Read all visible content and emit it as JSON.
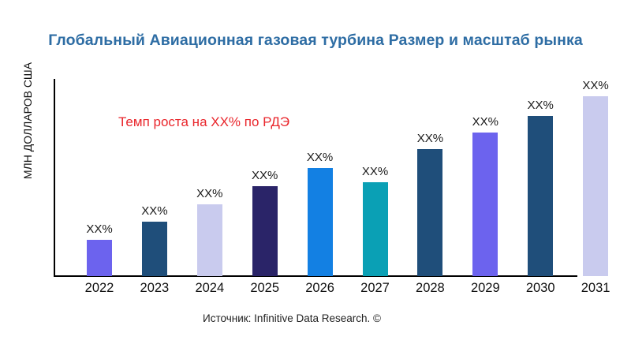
{
  "title": "Глобальный Авиационная газовая турбина Размер и масштаб рынка",
  "ylabel": "МЛН ДОЛЛАРОВ США",
  "annotation": {
    "text": "Темп роста на XX% по РДЭ",
    "color": "#e9262c"
  },
  "source": "Источник: Infinitive Data Research. ©",
  "colors": {
    "title": "#2e6da4",
    "axis": "#000000",
    "bar_label": "#1a1a1a"
  },
  "chart_data": {
    "type": "bar",
    "title": "Глобальный Авиационная газовая турбина Размер и масштаб рынка",
    "xlabel": "",
    "ylabel": "МЛН ДОЛЛАРОВ США",
    "categories": [
      "2022",
      "2023",
      "2024",
      "2025",
      "2026",
      "2027",
      "2028",
      "2029",
      "2030",
      "2031"
    ],
    "values": [
      46,
      69,
      91,
      114,
      137,
      119,
      161,
      182,
      203,
      228
    ],
    "values_note": "relative heights estimated from pixels; y-axis shows no numeric ticks",
    "bar_labels": [
      "XX%",
      "XX%",
      "XX%",
      "XX%",
      "XX%",
      "XX%",
      "XX%",
      "XX%",
      "XX%",
      "XX%"
    ],
    "bar_colors": [
      "#6c63ee",
      "#1f4e7a",
      "#c9cbee",
      "#2a2468",
      "#1380e3",
      "#0aa0b5",
      "#1f4e7a",
      "#6c63ee",
      "#1f4e7a",
      "#c9cbee"
    ],
    "ylim": [
      0,
      250
    ],
    "grid": false,
    "legend": false,
    "annotation": "Темп роста на XX% по РДЭ"
  }
}
